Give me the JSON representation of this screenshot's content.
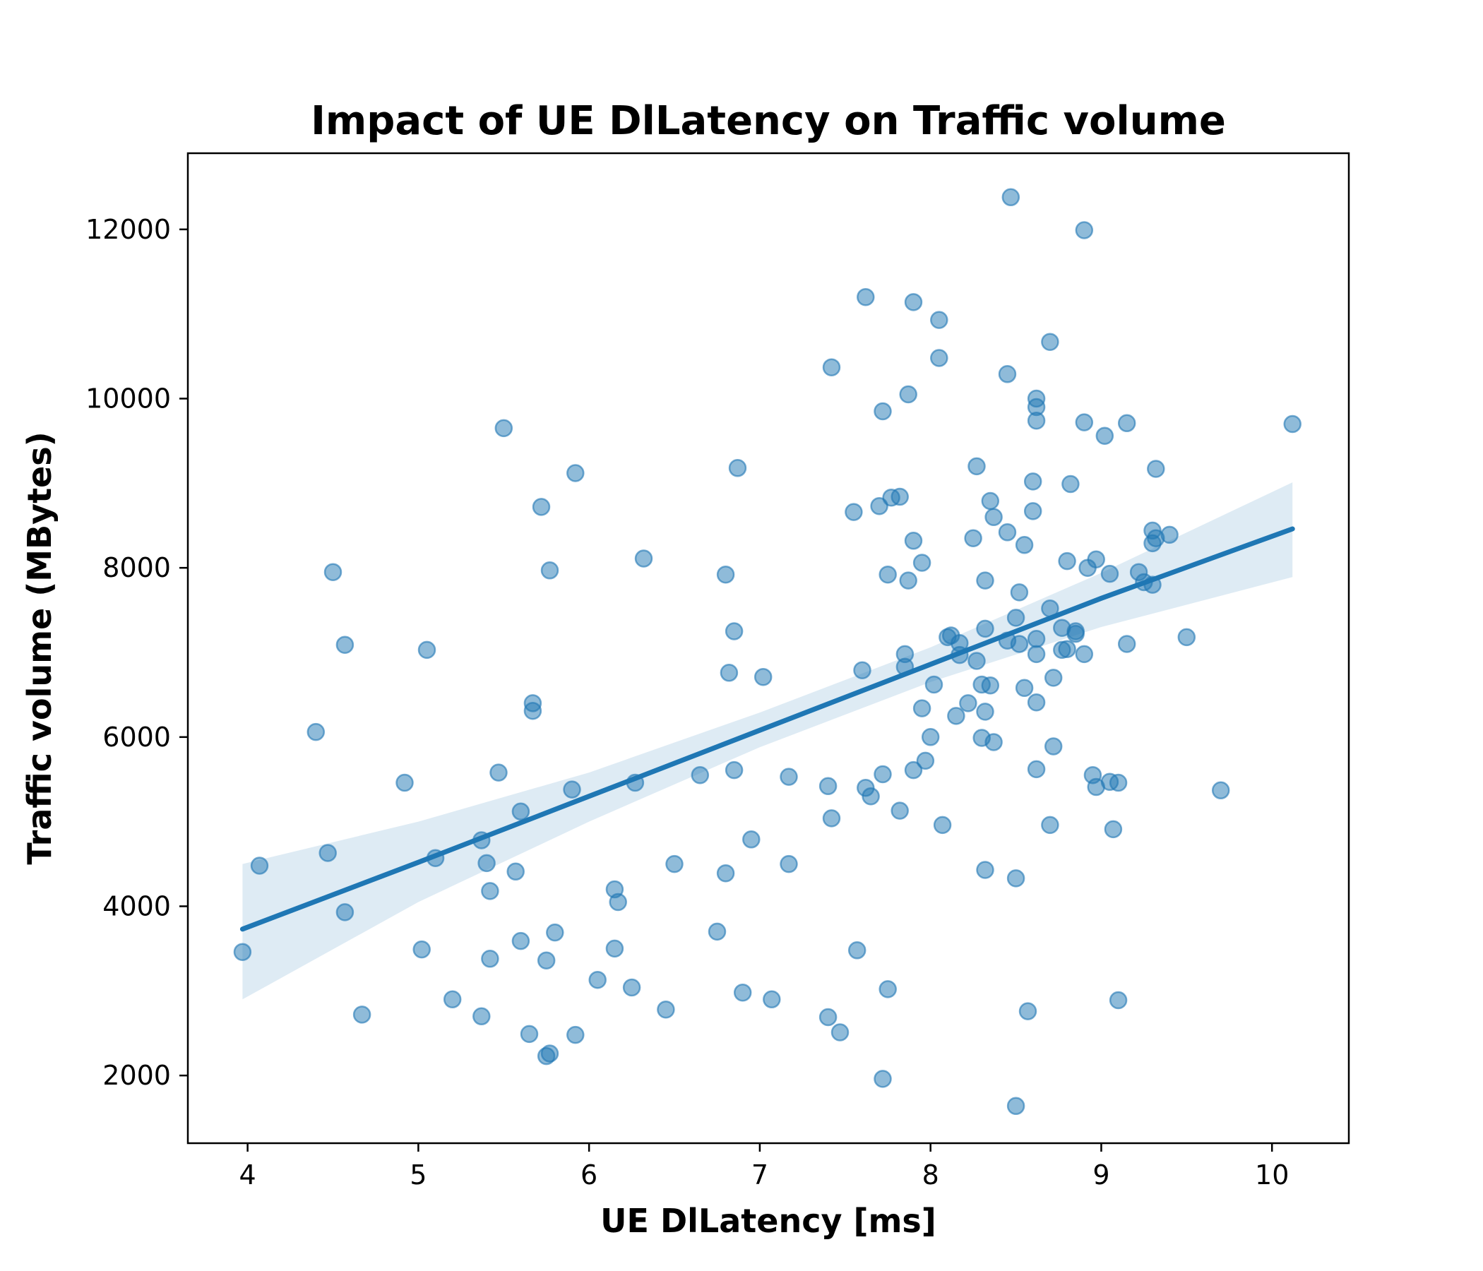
{
  "chart_data": {
    "type": "scatter",
    "title": "Impact of UE DlLatency on Traffic volume",
    "xlabel": "UE DlLatency [ms]",
    "ylabel": "Traffic volume (MBytes)",
    "xlim": [
      3.65,
      10.45
    ],
    "ylim": [
      1200,
      12900
    ],
    "xticks": [
      4,
      5,
      6,
      7,
      8,
      9,
      10
    ],
    "yticks": [
      2000,
      4000,
      6000,
      8000,
      10000,
      12000
    ],
    "grid": false,
    "colors": {
      "points": "#1f77b4",
      "line": "#1f77b4",
      "band": "#1f77b4",
      "axes": "#000000"
    },
    "points": [
      [
        3.97,
        3460
      ],
      [
        4.07,
        4480
      ],
      [
        4.4,
        6060
      ],
      [
        4.47,
        4630
      ],
      [
        4.5,
        7950
      ],
      [
        4.57,
        7090
      ],
      [
        4.57,
        3930
      ],
      [
        4.67,
        2720
      ],
      [
        4.92,
        5460
      ],
      [
        5.02,
        3490
      ],
      [
        5.05,
        7030
      ],
      [
        5.1,
        4570
      ],
      [
        5.2,
        2900
      ],
      [
        5.37,
        2700
      ],
      [
        5.37,
        4780
      ],
      [
        5.4,
        4510
      ],
      [
        5.42,
        4180
      ],
      [
        5.42,
        3380
      ],
      [
        5.47,
        5580
      ],
      [
        5.5,
        9650
      ],
      [
        5.57,
        4410
      ],
      [
        5.6,
        5120
      ],
      [
        5.6,
        3590
      ],
      [
        5.65,
        2490
      ],
      [
        5.67,
        6400
      ],
      [
        5.67,
        6310
      ],
      [
        5.72,
        8720
      ],
      [
        5.75,
        3360
      ],
      [
        5.75,
        2230
      ],
      [
        5.77,
        2260
      ],
      [
        5.77,
        7970
      ],
      [
        5.8,
        3690
      ],
      [
        5.9,
        5380
      ],
      [
        5.92,
        9120
      ],
      [
        5.92,
        2480
      ],
      [
        6.05,
        3130
      ],
      [
        6.15,
        4200
      ],
      [
        6.15,
        3500
      ],
      [
        6.17,
        4050
      ],
      [
        6.25,
        3040
      ],
      [
        6.27,
        5460
      ],
      [
        6.32,
        8110
      ],
      [
        6.45,
        2780
      ],
      [
        6.5,
        4500
      ],
      [
        6.65,
        5550
      ],
      [
        6.75,
        3700
      ],
      [
        6.8,
        7920
      ],
      [
        6.8,
        4390
      ],
      [
        6.82,
        6760
      ],
      [
        6.85,
        5610
      ],
      [
        6.85,
        7250
      ],
      [
        6.87,
        9180
      ],
      [
        6.9,
        2980
      ],
      [
        6.95,
        4790
      ],
      [
        7.02,
        6710
      ],
      [
        7.07,
        2900
      ],
      [
        7.17,
        5530
      ],
      [
        7.17,
        4500
      ],
      [
        7.4,
        2690
      ],
      [
        7.4,
        5420
      ],
      [
        7.42,
        5040
      ],
      [
        7.42,
        10370
      ],
      [
        7.47,
        2510
      ],
      [
        7.55,
        8660
      ],
      [
        7.57,
        3480
      ],
      [
        7.6,
        6790
      ],
      [
        7.62,
        11200
      ],
      [
        7.62,
        5400
      ],
      [
        7.65,
        5300
      ],
      [
        7.7,
        8730
      ],
      [
        7.72,
        9850
      ],
      [
        7.72,
        5560
      ],
      [
        7.72,
        1960
      ],
      [
        7.75,
        7920
      ],
      [
        7.75,
        3020
      ],
      [
        7.77,
        8830
      ],
      [
        7.82,
        8840
      ],
      [
        7.82,
        5130
      ],
      [
        7.85,
        6980
      ],
      [
        7.85,
        6830
      ],
      [
        7.87,
        7850
      ],
      [
        7.87,
        10050
      ],
      [
        7.9,
        11140
      ],
      [
        7.9,
        8320
      ],
      [
        7.9,
        5610
      ],
      [
        7.95,
        8060
      ],
      [
        7.95,
        6340
      ],
      [
        7.97,
        5720
      ],
      [
        8.0,
        6000
      ],
      [
        8.02,
        6620
      ],
      [
        8.05,
        10930
      ],
      [
        8.05,
        10480
      ],
      [
        8.07,
        4960
      ],
      [
        8.1,
        7180
      ],
      [
        8.12,
        7200
      ],
      [
        8.15,
        6250
      ],
      [
        8.17,
        7110
      ],
      [
        8.17,
        6970
      ],
      [
        8.22,
        6400
      ],
      [
        8.25,
        8350
      ],
      [
        8.27,
        9200
      ],
      [
        8.27,
        6900
      ],
      [
        8.3,
        6620
      ],
      [
        8.3,
        5990
      ],
      [
        8.32,
        7280
      ],
      [
        8.32,
        7850
      ],
      [
        8.32,
        6300
      ],
      [
        8.32,
        4430
      ],
      [
        8.35,
        8790
      ],
      [
        8.35,
        6610
      ],
      [
        8.37,
        8600
      ],
      [
        8.37,
        5940
      ],
      [
        8.45,
        10290
      ],
      [
        8.45,
        8420
      ],
      [
        8.45,
        7140
      ],
      [
        8.47,
        12380
      ],
      [
        8.5,
        7410
      ],
      [
        8.5,
        4330
      ],
      [
        8.5,
        1640
      ],
      [
        8.52,
        7710
      ],
      [
        8.52,
        7100
      ],
      [
        8.55,
        8270
      ],
      [
        8.55,
        6580
      ],
      [
        8.57,
        2760
      ],
      [
        8.6,
        9020
      ],
      [
        8.6,
        8670
      ],
      [
        8.62,
        10000
      ],
      [
        8.62,
        9900
      ],
      [
        8.62,
        9740
      ],
      [
        8.62,
        7160
      ],
      [
        8.62,
        6980
      ],
      [
        8.62,
        6410
      ],
      [
        8.62,
        5620
      ],
      [
        8.7,
        10670
      ],
      [
        8.7,
        7520
      ],
      [
        8.7,
        4960
      ],
      [
        8.72,
        6700
      ],
      [
        8.72,
        5890
      ],
      [
        8.77,
        7290
      ],
      [
        8.77,
        7030
      ],
      [
        8.8,
        8080
      ],
      [
        8.8,
        7040
      ],
      [
        8.82,
        8990
      ],
      [
        8.85,
        7250
      ],
      [
        8.85,
        7220
      ],
      [
        8.9,
        11990
      ],
      [
        8.9,
        9720
      ],
      [
        8.9,
        6980
      ],
      [
        8.92,
        8000
      ],
      [
        8.95,
        5550
      ],
      [
        8.97,
        8100
      ],
      [
        8.97,
        5410
      ],
      [
        9.02,
        9560
      ],
      [
        9.05,
        7930
      ],
      [
        9.05,
        5470
      ],
      [
        9.07,
        4910
      ],
      [
        9.1,
        5460
      ],
      [
        9.1,
        2890
      ],
      [
        9.15,
        9710
      ],
      [
        9.15,
        7100
      ],
      [
        9.22,
        7950
      ],
      [
        9.25,
        7830
      ],
      [
        9.3,
        8440
      ],
      [
        9.3,
        8290
      ],
      [
        9.3,
        7800
      ],
      [
        9.32,
        9170
      ],
      [
        9.32,
        8350
      ],
      [
        9.4,
        8390
      ],
      [
        9.5,
        7180
      ],
      [
        9.7,
        5370
      ],
      [
        10.12,
        9700
      ]
    ],
    "regression": {
      "x": [
        3.97,
        5.0,
        6.0,
        7.0,
        8.0,
        9.0,
        10.12
      ],
      "fit": [
        3730,
        4520,
        5300,
        6080,
        6860,
        7640,
        8460
      ],
      "lower": [
        2900,
        4050,
        5000,
        5880,
        6650,
        7300,
        7890
      ],
      "upper": [
        4500,
        5000,
        5580,
        6290,
        7060,
        7940,
        9010
      ]
    }
  }
}
